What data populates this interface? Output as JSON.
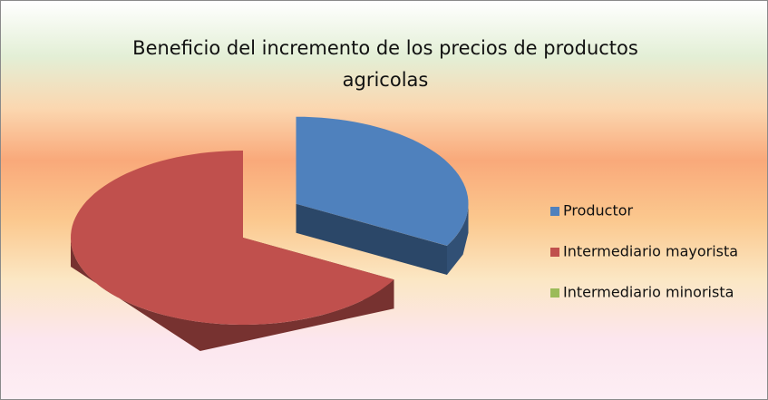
{
  "chart_data": {
    "type": "pie",
    "title": "Beneficio del incremento de los precios de productos agricolas",
    "categories": [
      "Productor",
      "Intermediario mayorista",
      "Intermediario minorista"
    ],
    "values": [
      33,
      67,
      0
    ],
    "colors": [
      "#4f81bd",
      "#c0504d",
      "#9bbb59"
    ],
    "legend": "right"
  }
}
